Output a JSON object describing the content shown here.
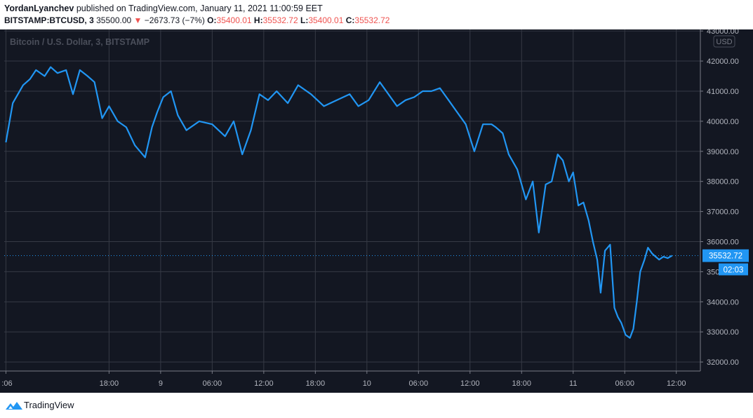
{
  "publish": {
    "author": "YordanLyanchev",
    "text": "published on TradingView.com, January 11, 2021 11:00:59 EET"
  },
  "ohlc": {
    "symbol": "BITSTAMP:BTCUSD, 3",
    "price": "35500.00",
    "change": "−2673.73 (−7%)",
    "open_label": "O:",
    "open": "35400.01",
    "high_label": "H:",
    "high": "35532.72",
    "low_label": "L:",
    "low": "35400.01",
    "close_label": "C:",
    "close": "35532.72"
  },
  "watermark": "Bitcoin / U.S. Dollar, 3, BITSTAMP",
  "currency_badge": "USD",
  "current_price_label": "35532.72",
  "countdown_label": "02:03",
  "footer": {
    "brand": "TradingView"
  },
  "colors": {
    "background": "#131722",
    "grid": "#363a45",
    "line": "#2196f3",
    "price_badge": "#2196f3",
    "down": "#ef5350"
  },
  "chart_data": {
    "type": "line",
    "title": "Bitcoin / U.S. Dollar, 3, BITSTAMP",
    "xlabel": "",
    "ylabel": "",
    "ylim": [
      31700,
      43050
    ],
    "y_ticks": [
      "32000.00",
      "33000.00",
      "34000.00",
      "35000.00",
      "36000.00",
      "37000.00",
      "38000.00",
      "39000.00",
      "40000.00",
      "41000.00",
      "42000.00",
      "43000.00"
    ],
    "x_ticks": [
      {
        "label": ":06",
        "hours": 0
      },
      {
        "label": "18:00",
        "hours": 12
      },
      {
        "label": "9",
        "hours": 18
      },
      {
        "label": "06:00",
        "hours": 24
      },
      {
        "label": "12:00",
        "hours": 30
      },
      {
        "label": "18:00",
        "hours": 36
      },
      {
        "label": "10",
        "hours": 42
      },
      {
        "label": "06:00",
        "hours": 48
      },
      {
        "label": "12:00",
        "hours": 54
      },
      {
        "label": "18:00",
        "hours": 60
      },
      {
        "label": "11",
        "hours": 66
      },
      {
        "label": "06:00",
        "hours": 72
      },
      {
        "label": "12:00",
        "hours": 78
      }
    ],
    "series": [
      {
        "x": [
          0,
          0.8,
          2.0,
          2.8,
          3.5,
          4.5,
          5.2,
          6.0,
          7.0,
          7.8,
          8.6,
          9.5,
          10.3,
          11.2,
          12.0,
          13.0,
          14.0,
          15.0,
          16.2,
          17.0,
          17.6,
          18.3,
          19.2,
          20.0,
          21.0,
          22.5,
          24.0,
          25.5,
          26.5,
          27.5,
          28.5,
          29.5,
          30.5,
          31.5,
          32.8,
          34.0,
          35.5,
          37.0,
          38.5,
          40.0,
          41.0,
          42.2,
          43.5,
          45.5,
          46.5,
          47.5,
          48.5,
          49.5,
          50.5,
          51.5,
          52.5,
          53.5,
          54.5,
          55.5,
          56.5,
          57.0,
          57.8,
          58.5,
          59.5,
          60.5,
          61.3,
          62.0,
          62.8,
          63.5,
          64.2,
          64.8,
          65.5,
          66.0,
          66.6,
          67.2,
          67.8,
          68.3,
          68.8,
          69.2,
          69.7,
          70.3,
          70.8,
          71.2,
          71.6,
          72.1,
          72.6,
          73.0,
          73.4,
          73.8,
          74.3,
          74.7,
          75.2,
          75.6,
          76.0,
          76.5,
          77.0,
          77.5
        ],
        "y": [
          39300,
          40600,
          41200,
          41400,
          41700,
          41500,
          41800,
          41600,
          41700,
          40900,
          41700,
          41500,
          41300,
          40100,
          40500,
          40000,
          39800,
          39200,
          38800,
          39800,
          40300,
          40800,
          41000,
          40200,
          39700,
          40000,
          39900,
          39500,
          40000,
          38900,
          39700,
          40900,
          40700,
          41000,
          40600,
          41200,
          40900,
          40500,
          40700,
          40900,
          40500,
          40700,
          41300,
          40500,
          40700,
          40800,
          41000,
          41000,
          41100,
          40700,
          40300,
          39900,
          39000,
          39900,
          39900,
          39800,
          39600,
          38900,
          38400,
          37400,
          38000,
          36300,
          37900,
          38000,
          38900,
          38700,
          38000,
          38300,
          37200,
          37300,
          36700,
          36000,
          35400,
          34300,
          35700,
          35900,
          33800,
          33500,
          33300,
          32900,
          32800,
          33100,
          34000,
          35000,
          35400,
          35800,
          35600,
          35500,
          35400,
          35500,
          35450,
          35532.72
        ]
      }
    ],
    "current_value": 35532.72,
    "grid": true,
    "legend": "none"
  }
}
